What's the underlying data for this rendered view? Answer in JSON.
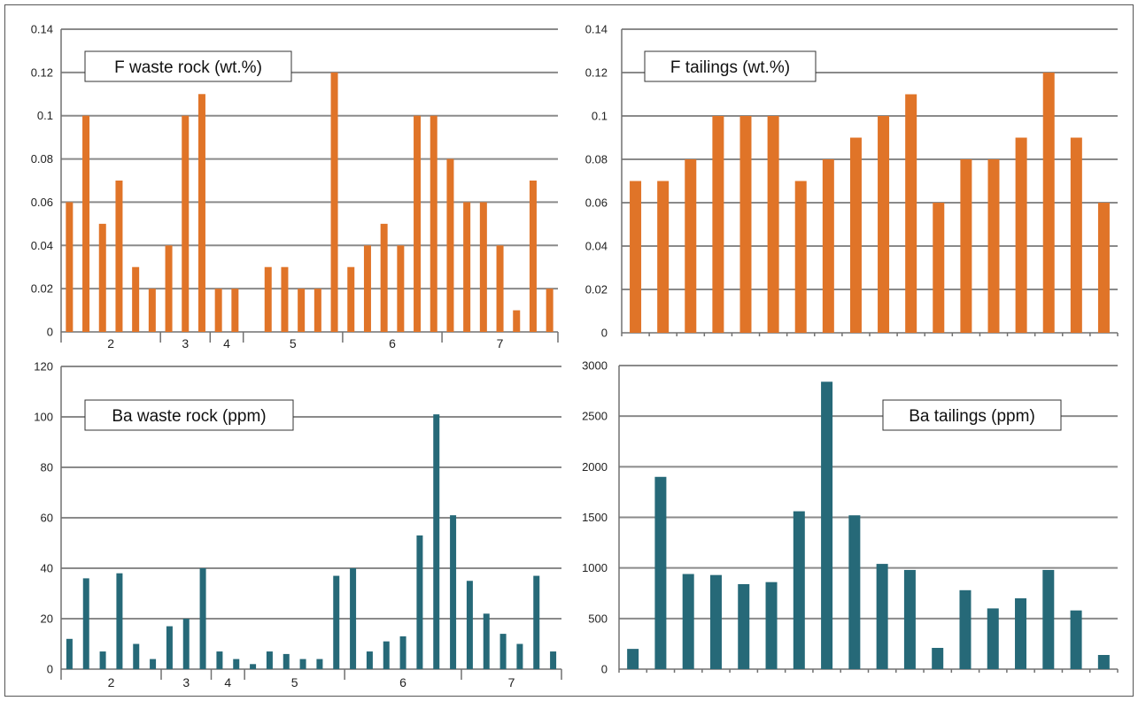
{
  "colors": {
    "fluorine_bars": "#e07428",
    "barium_bars": "#266978",
    "gridlines": "#8a8a8a",
    "border": "#555555"
  },
  "chart_data": [
    {
      "id": "f-waste",
      "type": "bar",
      "title": "F waste rock (wt.%)",
      "xlabel": "",
      "ylabel": "",
      "ylim": [
        0,
        0.14
      ],
      "yticks": [
        "0",
        "0.02",
        "0.04",
        "0.06",
        "0.08",
        "0.1",
        "0.12",
        "0.14"
      ],
      "grid": true,
      "values": [
        0.06,
        0.1,
        0.05,
        0.07,
        0.03,
        0.02,
        0.04,
        0.1,
        0.11,
        0.02,
        0.02,
        0.0,
        0.03,
        0.03,
        0.02,
        0.02,
        0.12,
        0.03,
        0.04,
        0.05,
        0.04,
        0.1,
        0.1,
        0.08,
        0.06,
        0.06,
        0.04,
        0.01,
        0.07,
        0.02
      ],
      "groups": [
        {
          "label": "2",
          "count": 6
        },
        {
          "label": "3",
          "count": 3
        },
        {
          "label": "4",
          "count": 2
        },
        {
          "label": "5",
          "count": 6
        },
        {
          "label": "6",
          "count": 6
        },
        {
          "label": "7",
          "count": 7
        }
      ]
    },
    {
      "id": "f-tailings",
      "type": "bar",
      "title": "F tailings (wt.%)",
      "xlabel": "",
      "ylabel": "",
      "ylim": [
        0,
        0.14
      ],
      "yticks": [
        "0",
        "0.02",
        "0.04",
        "0.06",
        "0.08",
        "0.1",
        "0.12",
        "0.14"
      ],
      "grid": true,
      "values": [
        0.07,
        0.07,
        0.08,
        0.1,
        0.1,
        0.1,
        0.07,
        0.08,
        0.09,
        0.1,
        0.11,
        0.06,
        0.08,
        0.08,
        0.09,
        0.12,
        0.09,
        0.06
      ]
    },
    {
      "id": "ba-waste",
      "type": "bar",
      "title": "Ba waste rock (ppm)",
      "xlabel": "",
      "ylabel": "",
      "ylim": [
        0,
        120
      ],
      "yticks": [
        "0",
        "20",
        "40",
        "60",
        "80",
        "100",
        "120"
      ],
      "grid": true,
      "values": [
        12,
        36,
        7,
        38,
        10,
        4,
        17,
        20,
        40,
        7,
        4,
        2,
        7,
        6,
        4,
        4,
        37,
        40,
        7,
        11,
        13,
        53,
        101,
        61,
        35,
        22,
        14,
        10,
        37,
        7
      ],
      "groups": [
        {
          "label": "2",
          "count": 6
        },
        {
          "label": "3",
          "count": 3
        },
        {
          "label": "4",
          "count": 2
        },
        {
          "label": "5",
          "count": 6
        },
        {
          "label": "6",
          "count": 7
        },
        {
          "label": "7",
          "count": 6
        }
      ]
    },
    {
      "id": "ba-tailings",
      "type": "bar",
      "title": "Ba tailings (ppm)",
      "xlabel": "",
      "ylabel": "",
      "ylim": [
        0,
        3000
      ],
      "yticks": [
        "0",
        "500",
        "1000",
        "1500",
        "2000",
        "2500",
        "3000"
      ],
      "grid": true,
      "values": [
        200,
        1900,
        940,
        930,
        840,
        860,
        1560,
        2840,
        1520,
        1040,
        980,
        210,
        780,
        600,
        700,
        980,
        580,
        140
      ]
    }
  ]
}
